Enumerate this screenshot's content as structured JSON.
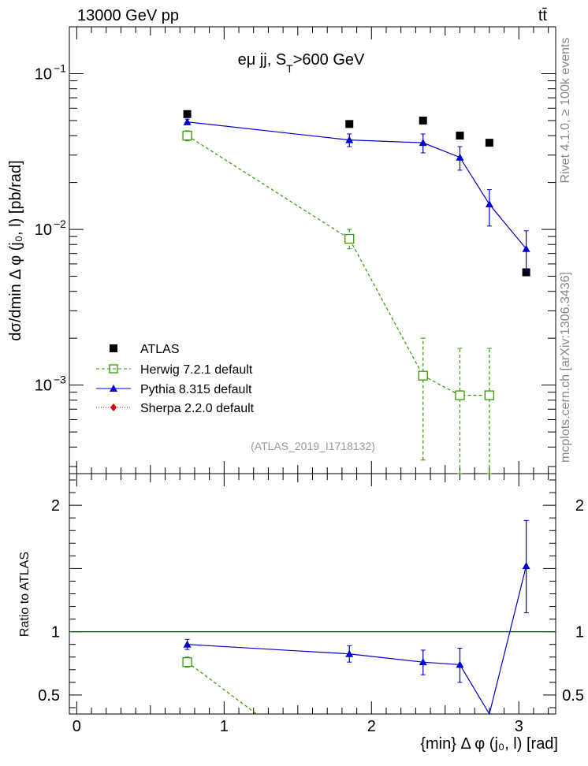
{
  "header": {
    "left": "13000 GeV pp",
    "right": "tt̄"
  },
  "side_texts": {
    "rivet": "Rivet 4.1.0, ≥ 100k events",
    "mcplots": "mcplots.cern.ch [arXiv:1306.3436]"
  },
  "main_title": "eμ jj, S",
  "main_title_sub": "T",
  "main_title_tail": ">600 GeV",
  "watermark": "(ATLAS_2019_I1718132)",
  "colors": {
    "atlas": "#000000",
    "herwig": "#339900",
    "pythia": "#0000cc",
    "sherpa": "#dd0000",
    "refline": "#005500"
  },
  "chart_data": [
    {
      "type": "scatter",
      "panel": "main",
      "scale": "log",
      "ylabel": "dσ/dmin Δ φ (j₀, l) [pb/rad]",
      "xlim": [
        -0.05,
        3.25
      ],
      "ylim": [
        0.00027,
        0.2
      ],
      "yticks": [
        {
          "value": 0.001,
          "label": "10",
          "exp": "−3"
        },
        {
          "value": 0.01,
          "label": "10",
          "exp": "−2"
        },
        {
          "value": 0.1,
          "label": "10",
          "exp": "−1"
        }
      ],
      "legend": {
        "placement": "lower-left",
        "entries": [
          "ATLAS",
          "Herwig 7.2.1 default",
          "Pythia 8.315 default",
          "Sherpa 2.2.0 default"
        ]
      },
      "series": [
        {
          "name": "ATLAS",
          "style": "marker",
          "points": [
            {
              "x": 0.75,
              "y": 0.055
            },
            {
              "x": 1.85,
              "y": 0.0475
            },
            {
              "x": 2.35,
              "y": 0.05
            },
            {
              "x": 2.6,
              "y": 0.04
            },
            {
              "x": 2.8,
              "y": 0.036
            },
            {
              "x": 3.05,
              "y": 0.0053
            }
          ]
        },
        {
          "name": "Herwig 7.2.1 default",
          "style": "dashed",
          "points": [
            {
              "x": 0.75,
              "y": 0.04,
              "lo": 0.037,
              "hi": 0.043
            },
            {
              "x": 1.85,
              "y": 0.0087,
              "lo": 0.0075,
              "hi": 0.01
            },
            {
              "x": 2.35,
              "y": 0.00115,
              "lo": 0.00033,
              "hi": 0.002
            },
            {
              "x": 2.6,
              "y": 0.00086,
              "lo": 0.00027,
              "hi": 0.00172
            },
            {
              "x": 2.8,
              "y": 0.00086,
              "lo": 0.00027,
              "hi": 0.00172
            }
          ]
        },
        {
          "name": "Pythia 8.315 default",
          "style": "solid",
          "points": [
            {
              "x": 0.75,
              "y": 0.049,
              "lo": 0.047,
              "hi": 0.051
            },
            {
              "x": 1.85,
              "y": 0.0375,
              "lo": 0.034,
              "hi": 0.041
            },
            {
              "x": 2.35,
              "y": 0.036,
              "lo": 0.031,
              "hi": 0.041
            },
            {
              "x": 2.6,
              "y": 0.029,
              "lo": 0.024,
              "hi": 0.034
            },
            {
              "x": 2.8,
              "y": 0.0145,
              "lo": 0.0105,
              "hi": 0.018
            },
            {
              "x": 3.05,
              "y": 0.0075,
              "lo": 0.0054,
              "hi": 0.0098
            }
          ]
        }
      ]
    },
    {
      "type": "line",
      "panel": "ratio",
      "scale": "linear",
      "xlabel": "{min} Δ φ (j₀, l) [rad]",
      "ylabel": "Ratio to ATLAS",
      "xlim": [
        -0.05,
        3.25
      ],
      "ylim": [
        0.35,
        2.25
      ],
      "xticks": [
        0,
        1,
        2,
        3
      ],
      "yticks": [
        0.5,
        1,
        2
      ],
      "reference": 1,
      "series": [
        {
          "name": "Herwig 7.2.1 default",
          "style": "dashed",
          "points": [
            {
              "x": 0.75,
              "y": 0.76,
              "lo": 0.72,
              "hi": 0.8
            },
            {
              "x": 1.22,
              "y": 0.35
            }
          ]
        },
        {
          "name": "Pythia 8.315 default",
          "style": "solid",
          "points": [
            {
              "x": 0.75,
              "y": 0.9,
              "lo": 0.86,
              "hi": 0.94
            },
            {
              "x": 1.85,
              "y": 0.825,
              "lo": 0.76,
              "hi": 0.89
            },
            {
              "x": 2.35,
              "y": 0.76,
              "lo": 0.66,
              "hi": 0.855
            },
            {
              "x": 2.6,
              "y": 0.74,
              "lo": 0.6,
              "hi": 0.87
            },
            {
              "x": 2.8,
              "y": 0.35
            },
            {
              "x": 3.05,
              "y": 1.52,
              "lo": 1.15,
              "hi": 1.88
            }
          ]
        }
      ]
    }
  ]
}
